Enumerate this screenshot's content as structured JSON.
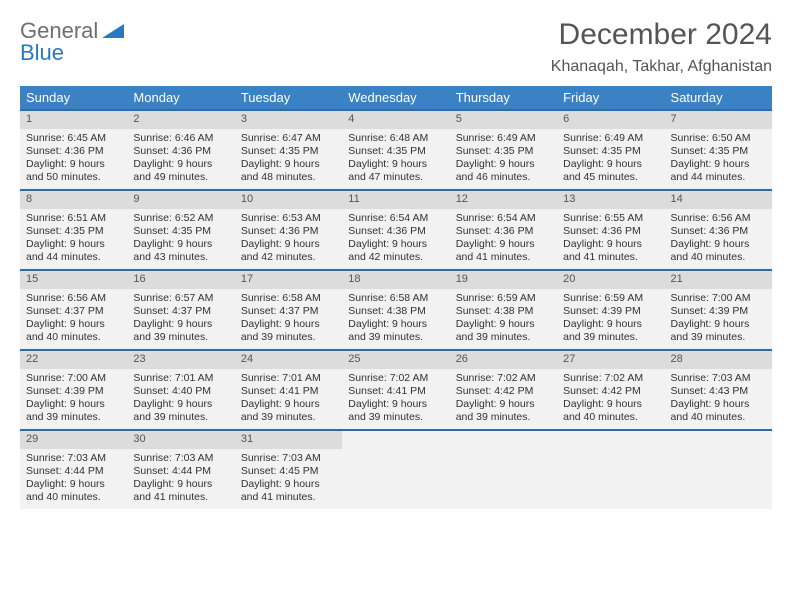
{
  "brand": {
    "part1": "General",
    "part2": "Blue"
  },
  "title": "December 2024",
  "location": "Khanaqah, Takhar, Afghanistan",
  "colors": {
    "header_bg": "#3a82c4",
    "header_text": "#ffffff",
    "week_border": "#2f6aa0",
    "daynum_bg": "#dcdcdc",
    "cell_bg": "#f2f2f2",
    "brand_gray": "#6f6f6f",
    "brand_blue": "#2b78c2",
    "text": "#333333",
    "title_color": "#555555"
  },
  "layout": {
    "columns": 7,
    "rows": 5,
    "font_family": "Arial",
    "daynum_fontsize": 11,
    "body_fontsize": 10.5,
    "weekday_fontsize": 13,
    "title_fontsize": 30,
    "location_fontsize": 16
  },
  "weekdays": [
    "Sunday",
    "Monday",
    "Tuesday",
    "Wednesday",
    "Thursday",
    "Friday",
    "Saturday"
  ],
  "days": [
    {
      "n": "1",
      "sunrise": "Sunrise: 6:45 AM",
      "sunset": "Sunset: 4:36 PM",
      "daylight": "Daylight: 9 hours and 50 minutes."
    },
    {
      "n": "2",
      "sunrise": "Sunrise: 6:46 AM",
      "sunset": "Sunset: 4:36 PM",
      "daylight": "Daylight: 9 hours and 49 minutes."
    },
    {
      "n": "3",
      "sunrise": "Sunrise: 6:47 AM",
      "sunset": "Sunset: 4:35 PM",
      "daylight": "Daylight: 9 hours and 48 minutes."
    },
    {
      "n": "4",
      "sunrise": "Sunrise: 6:48 AM",
      "sunset": "Sunset: 4:35 PM",
      "daylight": "Daylight: 9 hours and 47 minutes."
    },
    {
      "n": "5",
      "sunrise": "Sunrise: 6:49 AM",
      "sunset": "Sunset: 4:35 PM",
      "daylight": "Daylight: 9 hours and 46 minutes."
    },
    {
      "n": "6",
      "sunrise": "Sunrise: 6:49 AM",
      "sunset": "Sunset: 4:35 PM",
      "daylight": "Daylight: 9 hours and 45 minutes."
    },
    {
      "n": "7",
      "sunrise": "Sunrise: 6:50 AM",
      "sunset": "Sunset: 4:35 PM",
      "daylight": "Daylight: 9 hours and 44 minutes."
    },
    {
      "n": "8",
      "sunrise": "Sunrise: 6:51 AM",
      "sunset": "Sunset: 4:35 PM",
      "daylight": "Daylight: 9 hours and 44 minutes."
    },
    {
      "n": "9",
      "sunrise": "Sunrise: 6:52 AM",
      "sunset": "Sunset: 4:35 PM",
      "daylight": "Daylight: 9 hours and 43 minutes."
    },
    {
      "n": "10",
      "sunrise": "Sunrise: 6:53 AM",
      "sunset": "Sunset: 4:36 PM",
      "daylight": "Daylight: 9 hours and 42 minutes."
    },
    {
      "n": "11",
      "sunrise": "Sunrise: 6:54 AM",
      "sunset": "Sunset: 4:36 PM",
      "daylight": "Daylight: 9 hours and 42 minutes."
    },
    {
      "n": "12",
      "sunrise": "Sunrise: 6:54 AM",
      "sunset": "Sunset: 4:36 PM",
      "daylight": "Daylight: 9 hours and 41 minutes."
    },
    {
      "n": "13",
      "sunrise": "Sunrise: 6:55 AM",
      "sunset": "Sunset: 4:36 PM",
      "daylight": "Daylight: 9 hours and 41 minutes."
    },
    {
      "n": "14",
      "sunrise": "Sunrise: 6:56 AM",
      "sunset": "Sunset: 4:36 PM",
      "daylight": "Daylight: 9 hours and 40 minutes."
    },
    {
      "n": "15",
      "sunrise": "Sunrise: 6:56 AM",
      "sunset": "Sunset: 4:37 PM",
      "daylight": "Daylight: 9 hours and 40 minutes."
    },
    {
      "n": "16",
      "sunrise": "Sunrise: 6:57 AM",
      "sunset": "Sunset: 4:37 PM",
      "daylight": "Daylight: 9 hours and 39 minutes."
    },
    {
      "n": "17",
      "sunrise": "Sunrise: 6:58 AM",
      "sunset": "Sunset: 4:37 PM",
      "daylight": "Daylight: 9 hours and 39 minutes."
    },
    {
      "n": "18",
      "sunrise": "Sunrise: 6:58 AM",
      "sunset": "Sunset: 4:38 PM",
      "daylight": "Daylight: 9 hours and 39 minutes."
    },
    {
      "n": "19",
      "sunrise": "Sunrise: 6:59 AM",
      "sunset": "Sunset: 4:38 PM",
      "daylight": "Daylight: 9 hours and 39 minutes."
    },
    {
      "n": "20",
      "sunrise": "Sunrise: 6:59 AM",
      "sunset": "Sunset: 4:39 PM",
      "daylight": "Daylight: 9 hours and 39 minutes."
    },
    {
      "n": "21",
      "sunrise": "Sunrise: 7:00 AM",
      "sunset": "Sunset: 4:39 PM",
      "daylight": "Daylight: 9 hours and 39 minutes."
    },
    {
      "n": "22",
      "sunrise": "Sunrise: 7:00 AM",
      "sunset": "Sunset: 4:39 PM",
      "daylight": "Daylight: 9 hours and 39 minutes."
    },
    {
      "n": "23",
      "sunrise": "Sunrise: 7:01 AM",
      "sunset": "Sunset: 4:40 PM",
      "daylight": "Daylight: 9 hours and 39 minutes."
    },
    {
      "n": "24",
      "sunrise": "Sunrise: 7:01 AM",
      "sunset": "Sunset: 4:41 PM",
      "daylight": "Daylight: 9 hours and 39 minutes."
    },
    {
      "n": "25",
      "sunrise": "Sunrise: 7:02 AM",
      "sunset": "Sunset: 4:41 PM",
      "daylight": "Daylight: 9 hours and 39 minutes."
    },
    {
      "n": "26",
      "sunrise": "Sunrise: 7:02 AM",
      "sunset": "Sunset: 4:42 PM",
      "daylight": "Daylight: 9 hours and 39 minutes."
    },
    {
      "n": "27",
      "sunrise": "Sunrise: 7:02 AM",
      "sunset": "Sunset: 4:42 PM",
      "daylight": "Daylight: 9 hours and 40 minutes."
    },
    {
      "n": "28",
      "sunrise": "Sunrise: 7:03 AM",
      "sunset": "Sunset: 4:43 PM",
      "daylight": "Daylight: 9 hours and 40 minutes."
    },
    {
      "n": "29",
      "sunrise": "Sunrise: 7:03 AM",
      "sunset": "Sunset: 4:44 PM",
      "daylight": "Daylight: 9 hours and 40 minutes."
    },
    {
      "n": "30",
      "sunrise": "Sunrise: 7:03 AM",
      "sunset": "Sunset: 4:44 PM",
      "daylight": "Daylight: 9 hours and 41 minutes."
    },
    {
      "n": "31",
      "sunrise": "Sunrise: 7:03 AM",
      "sunset": "Sunset: 4:45 PM",
      "daylight": "Daylight: 9 hours and 41 minutes."
    }
  ]
}
